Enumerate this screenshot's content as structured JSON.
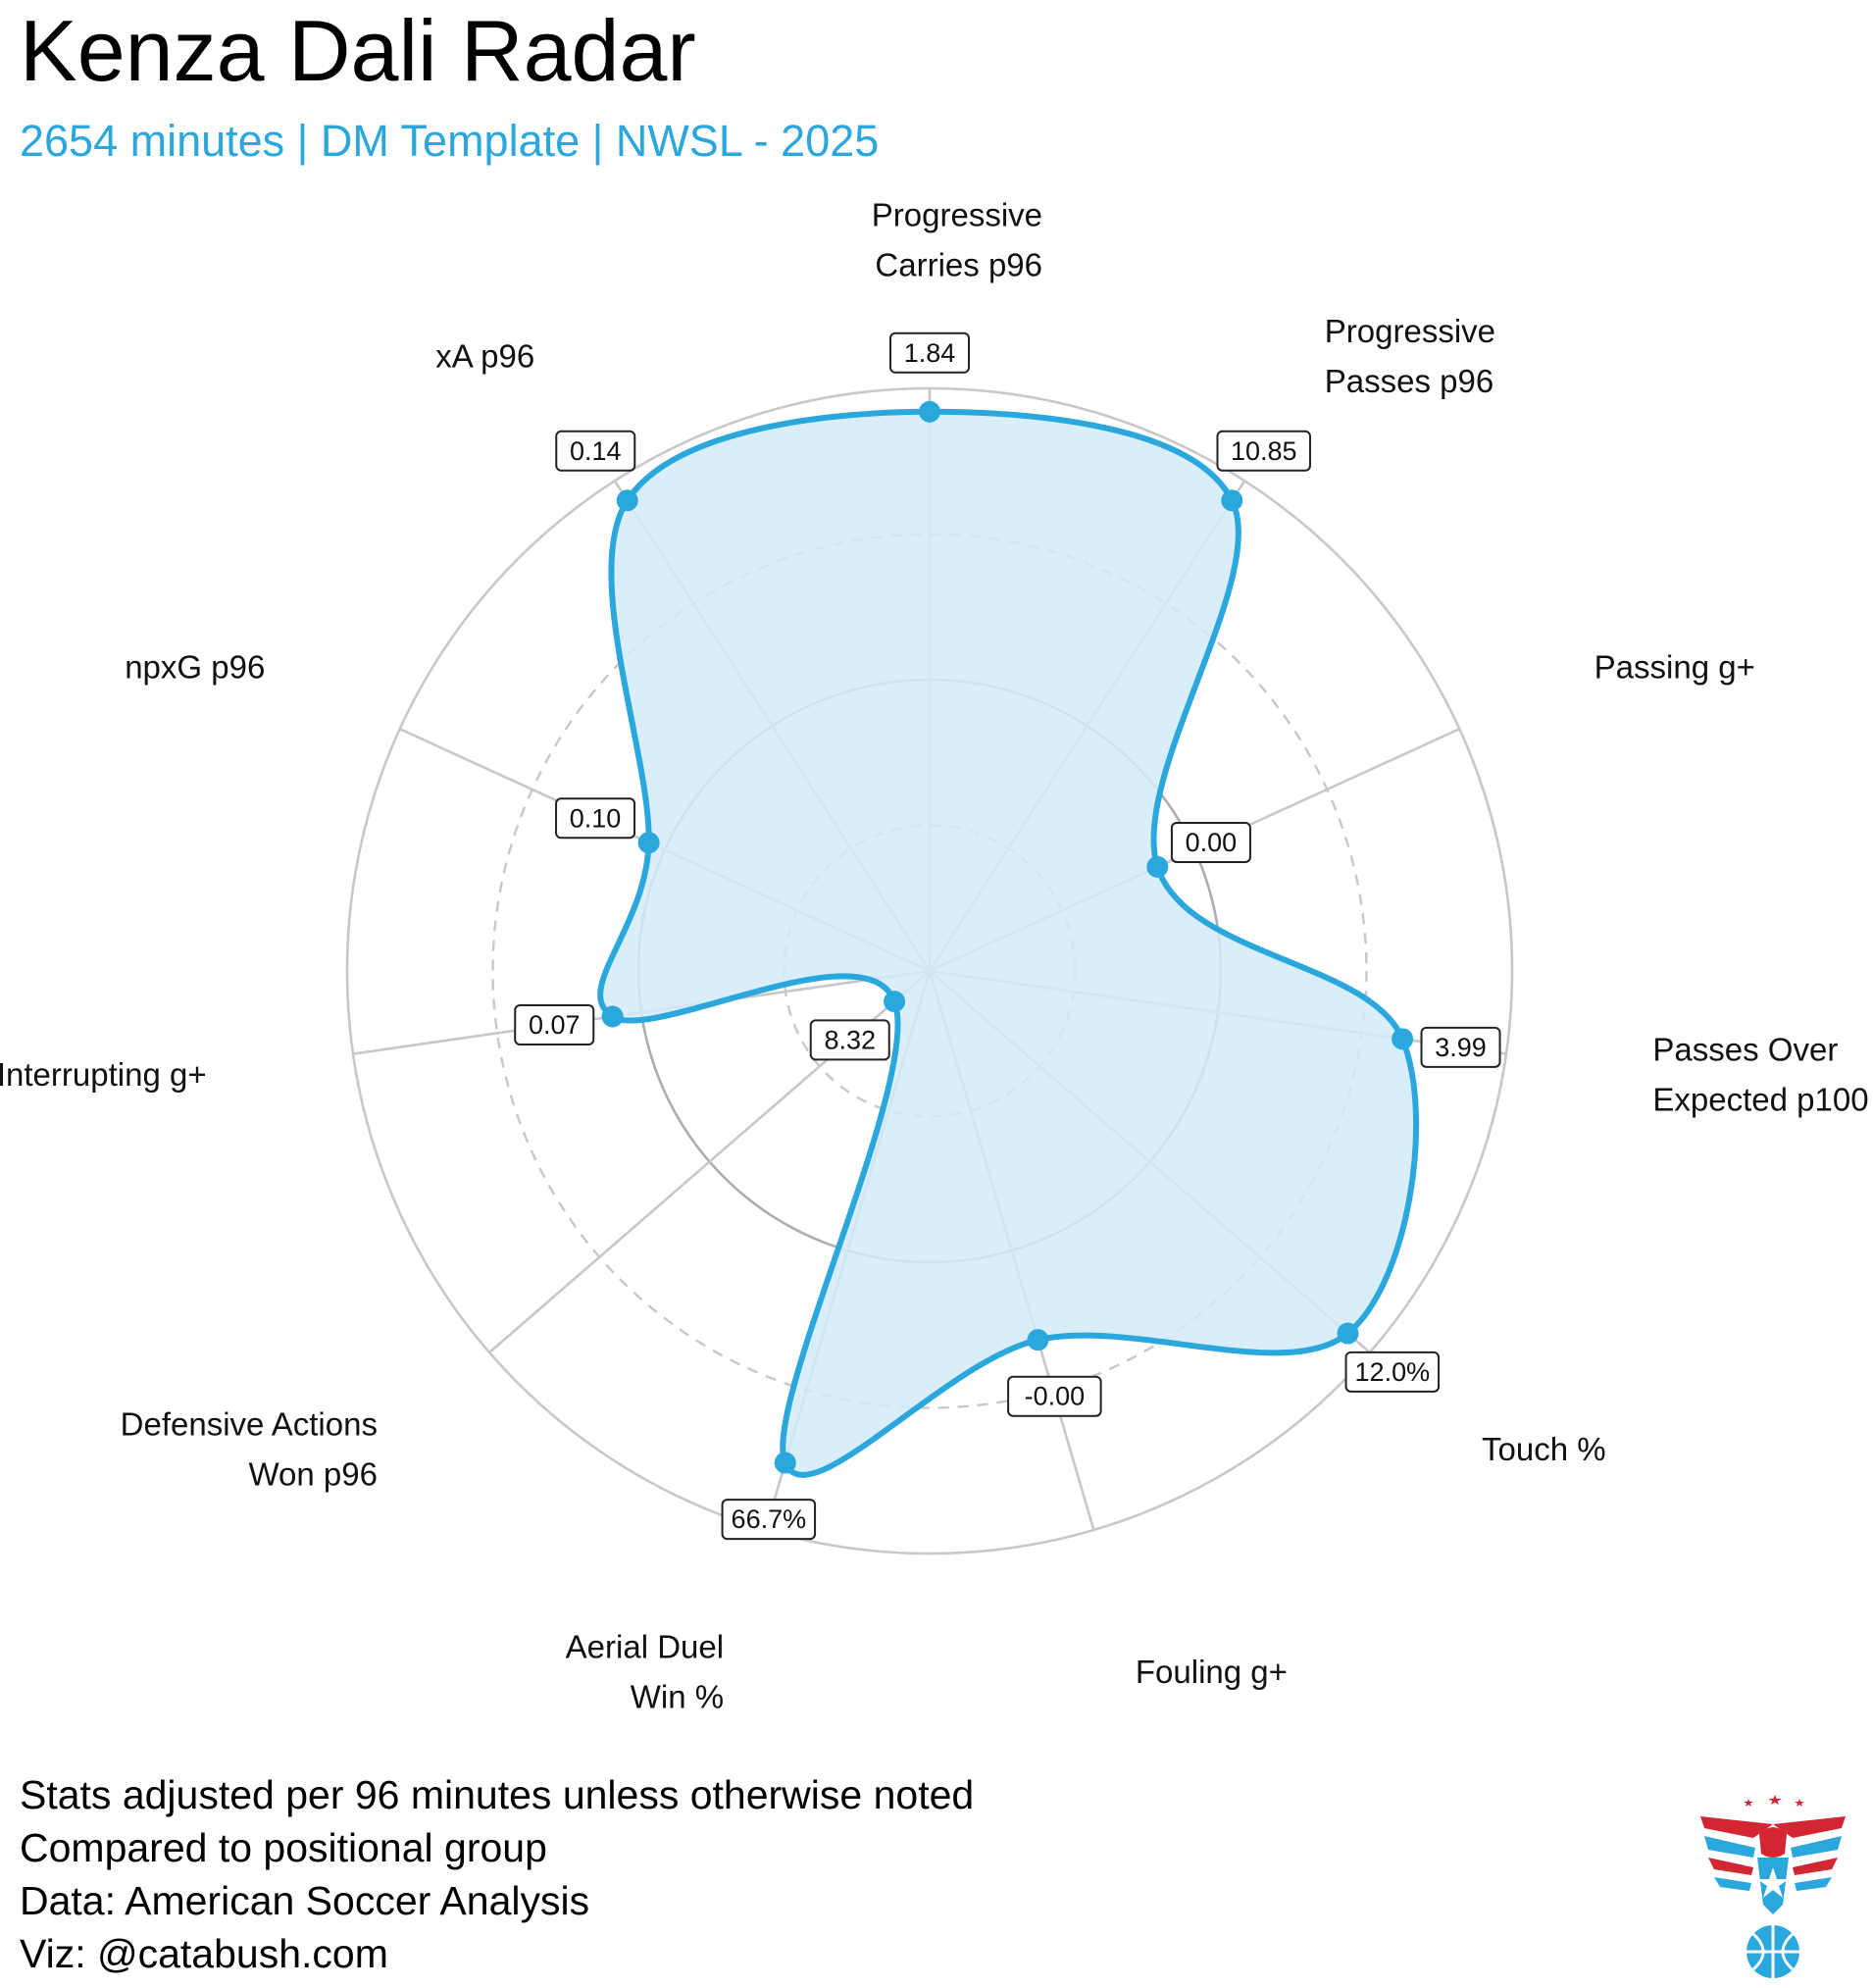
{
  "title": "Kenza Dali Radar",
  "subtitle": "2654 minutes | DM Template | NWSL - 2025",
  "footnotes": [
    "Stats adjusted per 96 minutes unless otherwise noted",
    "Compared to positional group",
    "Data: American Soccer Analysis",
    "Viz: @catabush.com"
  ],
  "colors": {
    "accent": "#2aa7dc",
    "fill": "#d4ebf8",
    "grid": "#c8c8c8",
    "label_text": "#111111"
  },
  "chart_data": {
    "type": "radar",
    "title": "Kenza Dali Radar",
    "r_range": [
      0,
      100
    ],
    "grid_rings": [
      25,
      50,
      75,
      100
    ],
    "axes": [
      {
        "label": [
          "Progressive",
          "Carries p96"
        ],
        "value_label": "1.84",
        "percentile": 96
      },
      {
        "label": [
          "Progressive",
          "Passes p96"
        ],
        "value_label": "10.85",
        "percentile": 96
      },
      {
        "label": [
          "Passing g+"
        ],
        "value_label": "0.00",
        "percentile": 43
      },
      {
        "label": [
          "Passes Over",
          "Expected p100"
        ],
        "value_label": "3.99",
        "percentile": 82
      },
      {
        "label": [
          "Touch %"
        ],
        "value_label": "12.0%",
        "percentile": 95
      },
      {
        "label": [
          "Fouling g+"
        ],
        "value_label": "-0.00",
        "percentile": 66
      },
      {
        "label": [
          "Aerial Duel",
          "Win %"
        ],
        "value_label": "66.7%",
        "percentile": 88
      },
      {
        "label": [
          "Defensive Actions",
          "Won p96"
        ],
        "value_label": "8.32",
        "percentile": 8
      },
      {
        "label": [
          "Interrupting g+"
        ],
        "value_label": "0.07",
        "percentile": 55
      },
      {
        "label": [
          "npxG p96"
        ],
        "value_label": "0.10",
        "percentile": 53
      },
      {
        "label": [
          "xA p96"
        ],
        "value_label": "0.14",
        "percentile": 96
      }
    ]
  }
}
